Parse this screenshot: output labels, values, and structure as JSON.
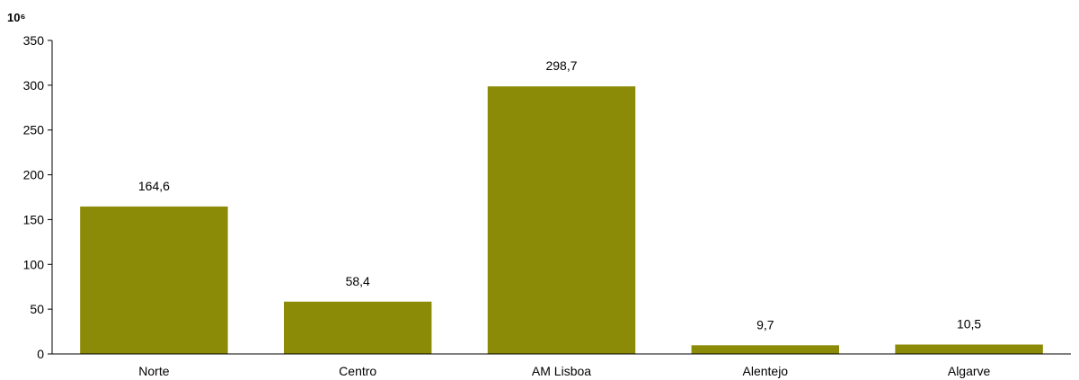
{
  "chart_data": {
    "type": "bar",
    "unit_label": "10⁶",
    "categories": [
      "Norte",
      "Centro",
      "AM Lisboa",
      "Alentejo",
      "Algarve"
    ],
    "values": [
      164.6,
      58.4,
      298.7,
      9.7,
      10.5
    ],
    "data_labels": [
      "164,6",
      "58,4",
      "298,7",
      "9,7",
      "10,5"
    ],
    "ylim": [
      0,
      350
    ],
    "yticks": [
      0,
      50,
      100,
      150,
      200,
      250,
      300,
      350
    ],
    "grid": false,
    "bar_color": "#8B8B07"
  }
}
